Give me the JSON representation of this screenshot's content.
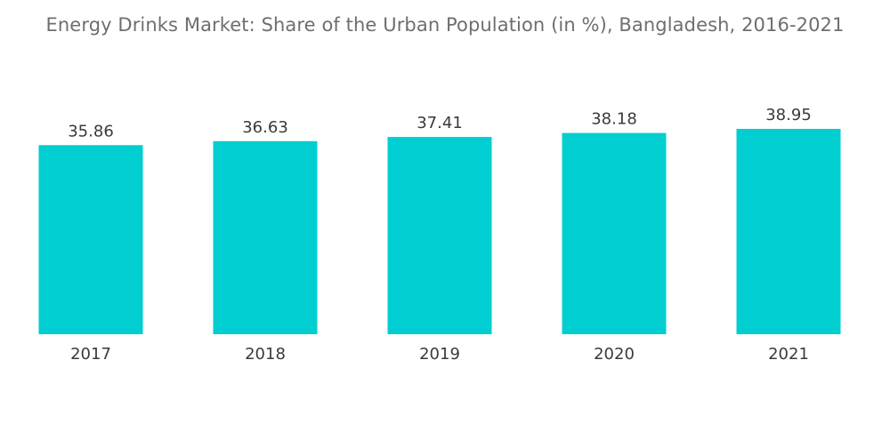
{
  "chart_data": {
    "type": "bar",
    "title": "Energy Drinks Market: Share of the Urban Population (in %), Bangladesh, 2016-2021",
    "categories": [
      "2017",
      "2018",
      "2019",
      "2020",
      "2021"
    ],
    "values": [
      35.86,
      36.63,
      37.41,
      38.18,
      38.95
    ],
    "value_labels": [
      "35.86",
      "36.63",
      "37.41",
      "38.18",
      "38.95"
    ],
    "xlabel": "",
    "ylabel": "",
    "ylim": [
      0,
      38.95
    ],
    "grid": false,
    "legend": "none",
    "bar_color": "#00CED1"
  }
}
